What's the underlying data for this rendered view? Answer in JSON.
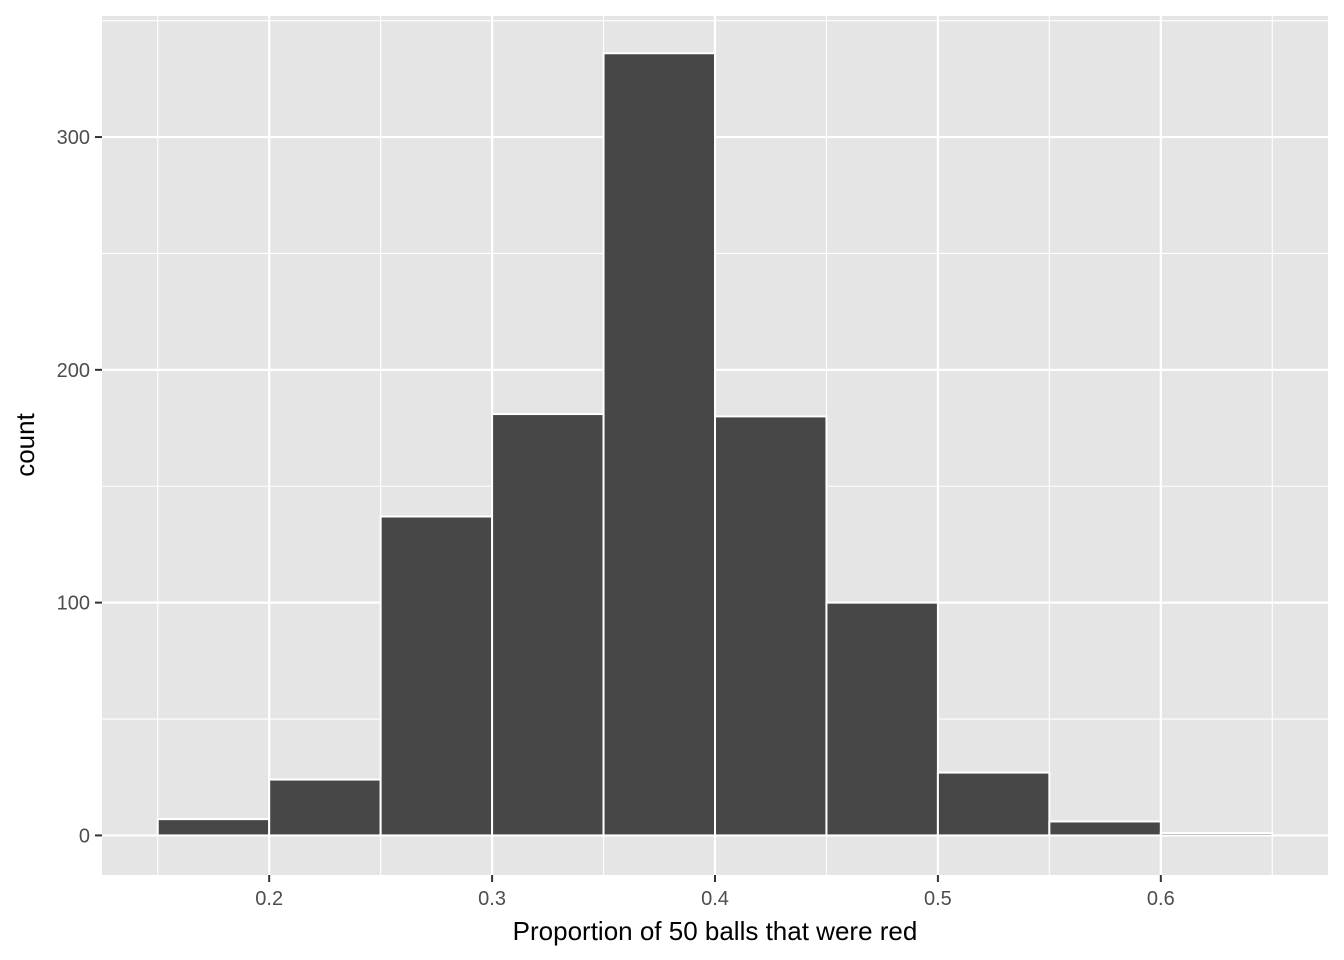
{
  "chart_data": {
    "type": "bar",
    "subtype": "histogram",
    "title": "",
    "xlabel": "Proportion of 50 balls that were red",
    "ylabel": "count",
    "xlim": [
      0.125,
      0.675
    ],
    "ylim": [
      -17,
      352
    ],
    "x_ticks": [
      0.2,
      0.3,
      0.4,
      0.5,
      0.6
    ],
    "x_tick_labels": [
      "0.2",
      "0.3",
      "0.4",
      "0.5",
      "0.6"
    ],
    "y_ticks": [
      0,
      100,
      200,
      300
    ],
    "y_tick_labels": [
      "0",
      "100",
      "200",
      "300"
    ],
    "grid": true,
    "bins": [
      {
        "x_min": 0.15,
        "x_max": 0.2,
        "count": 7
      },
      {
        "x_min": 0.2,
        "x_max": 0.25,
        "count": 24
      },
      {
        "x_min": 0.25,
        "x_max": 0.3,
        "count": 137
      },
      {
        "x_min": 0.3,
        "x_max": 0.35,
        "count": 181
      },
      {
        "x_min": 0.35,
        "x_max": 0.4,
        "count": 336
      },
      {
        "x_min": 0.4,
        "x_max": 0.45,
        "count": 180
      },
      {
        "x_min": 0.45,
        "x_max": 0.5,
        "count": 100
      },
      {
        "x_min": 0.5,
        "x_max": 0.55,
        "count": 27
      },
      {
        "x_min": 0.55,
        "x_max": 0.6,
        "count": 6
      },
      {
        "x_min": 0.6,
        "x_max": 0.65,
        "count": 1
      }
    ],
    "colors": {
      "panel_background": "#e5e5e5",
      "grid": "#ffffff",
      "bar_fill": "#474747",
      "bar_outline": "#ffffff"
    }
  }
}
